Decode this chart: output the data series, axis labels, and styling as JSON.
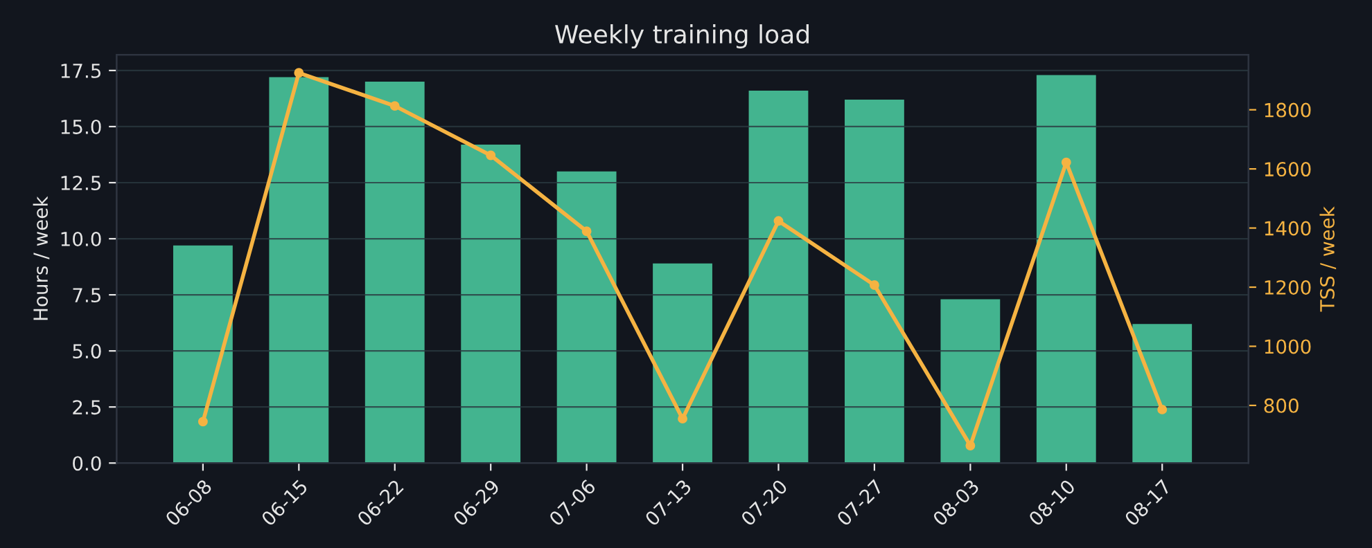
{
  "chart_data": {
    "type": "bar",
    "title": "Weekly training load",
    "ylabel": "Hours / week",
    "y2label": "TSS / week",
    "categories": [
      "06-08",
      "06-15",
      "06-22",
      "06-29",
      "07-06",
      "07-13",
      "07-20",
      "07-27",
      "08-03",
      "08-10",
      "08-17"
    ],
    "series": [
      {
        "color": "#43b48f",
        "values": [
          9.7,
          17.2,
          17.0,
          14.2,
          13.0,
          8.9,
          16.6,
          16.2,
          7.3,
          17.3,
          6.2
        ]
      },
      {
        "type": "line",
        "axis": "y2",
        "color": "#f5b342",
        "marker": "circle",
        "line_style": "solid",
        "values": [
          745,
          1925,
          1813,
          1646,
          1389,
          755,
          1424,
          1207,
          664,
          1622,
          786
        ]
      }
    ],
    "ylim": [
      0,
      18.2
    ],
    "yticks": [
      {
        "value": 0,
        "label": "0.0"
      },
      {
        "value": 2.5,
        "label": "2.5"
      },
      {
        "value": 5,
        "label": "5.0"
      },
      {
        "value": 7.5,
        "label": "7.5"
      },
      {
        "value": 10,
        "label": "10.0"
      },
      {
        "value": 12.5,
        "label": "12.5"
      },
      {
        "value": 15,
        "label": "15.0"
      },
      {
        "value": 17.5,
        "label": "17.5"
      }
    ],
    "y2lim": [
      605,
      1986
    ],
    "y2ticks": [
      800,
      1000,
      1200,
      1400,
      1600,
      1800
    ],
    "grid": "y",
    "legend": false
  }
}
